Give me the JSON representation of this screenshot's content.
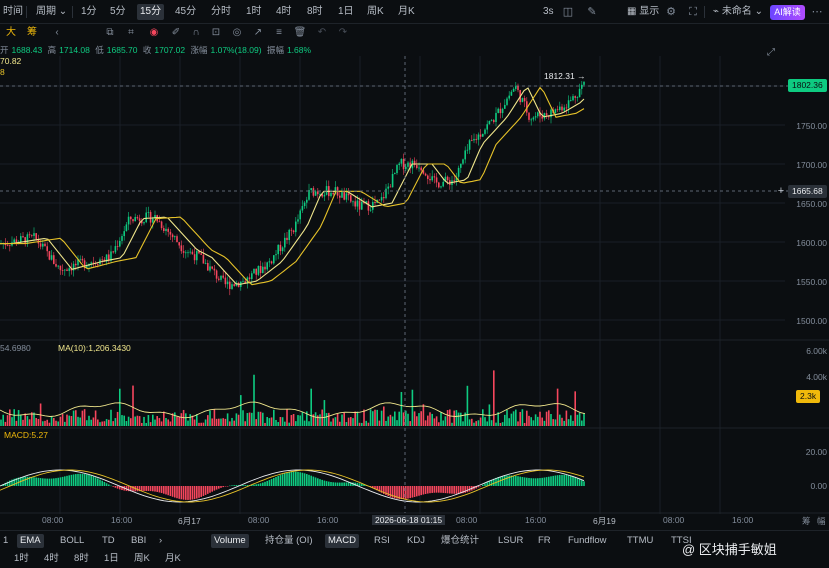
{
  "toolbar": {
    "time": "时间",
    "period": "周期",
    "intervals": [
      "1分",
      "5分",
      "15分",
      "45分",
      "分时",
      "1时",
      "4时",
      "8时",
      "1日",
      "周K",
      "月K"
    ],
    "active_interval": "15分",
    "refresh": "3s",
    "display": "显示",
    "layout_name": "未命名",
    "ai_button": "AI解读"
  },
  "chart_mode_tags": [
    "大",
    "筹"
  ],
  "ohlc": {
    "open_label": "开",
    "open": "1688.43",
    "high_label": "高",
    "high": "1714.08",
    "low_label": "低",
    "low": "1685.70",
    "close_label": "收",
    "close": "1707.02",
    "change_label": "涨幅",
    "change": "1.07%(18.09)",
    "amplitude_label": "振幅",
    "amplitude": "1.68%"
  },
  "ma_values": [
    "70.82",
    "8"
  ],
  "price_axis": {
    "ticks": [
      "1750.00",
      "1700.00",
      "1650.00",
      "1600.00",
      "1550.00",
      "1500.00"
    ],
    "current_price": "1802.36",
    "crosshair_price": "1665.68",
    "high_marker": "1812.31"
  },
  "volume": {
    "ma_label_left": "54.6980",
    "ma_label": "MA(10):1,206.3430",
    "ticks": [
      "6.00k",
      "4.00k",
      "2.3k"
    ],
    "current": "2.3k"
  },
  "macd": {
    "label": "MACD:5.27",
    "ticks": [
      "20.00",
      "0.00"
    ]
  },
  "time_axis": {
    "labels": [
      "08:00",
      "16:00",
      "6月17",
      "08:00",
      "16:00",
      "08:00",
      "16:00",
      "6月19",
      "08:00",
      "16:00"
    ],
    "crosshair_time": "2026-06-18 01:15",
    "right_labels": [
      "筹",
      "幅"
    ]
  },
  "indicators": [
    "EMA",
    "BOLL",
    "TD",
    "BBI",
    "Volume",
    "持仓量 (OI)",
    "MACD",
    "RSI",
    "KDJ",
    "爆仓统计",
    "LSUR",
    "FR",
    "Fundflow",
    "TTMU",
    "TTSI"
  ],
  "indicator_prefix": "1",
  "active_indicators": [
    "EMA",
    "Volume",
    "MACD"
  ],
  "bottom_intervals": [
    "1时",
    "4时",
    "8时",
    "1日",
    "周K",
    "月K"
  ],
  "watermark": "@ 区块捕手敏姐",
  "colors": {
    "up": "#0ecb81",
    "down": "#f6465d",
    "ma_fast": "#f0e68c",
    "ma_slow": "#e6c229",
    "bg": "#0b0e11",
    "grid": "#1a1f26"
  }
}
